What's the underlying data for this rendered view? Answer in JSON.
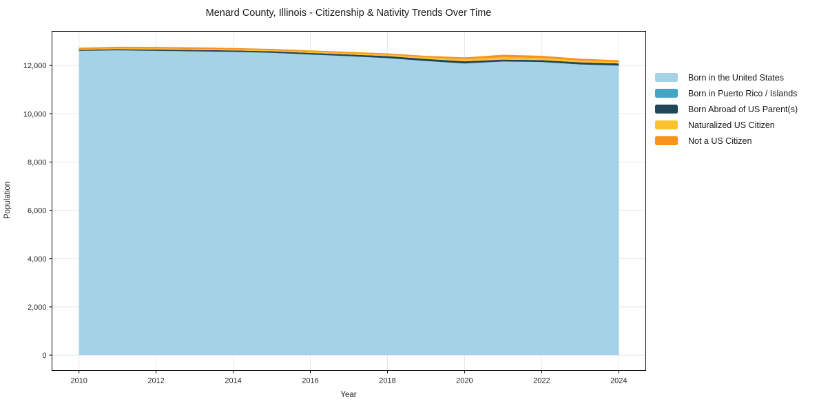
{
  "figure": {
    "title": "Menard County, Illinois - Citizenship & Nativity Trends Over Time",
    "xlabel": "Year",
    "ylabel": "Population"
  },
  "colors": {
    "background": "#ffffff",
    "grid": "#e7e7e7",
    "spine": "#000000",
    "tick_text": "#262626"
  },
  "chart_data": {
    "type": "area",
    "stacked": true,
    "title": "Menard County, Illinois - Citizenship & Nativity Trends Over Time",
    "xlabel": "Year",
    "ylabel": "Population",
    "x": [
      2010,
      2011,
      2012,
      2013,
      2014,
      2015,
      2016,
      2017,
      2018,
      2019,
      2020,
      2021,
      2022,
      2023,
      2024
    ],
    "series": [
      {
        "name": "Born in the United States",
        "color": "#a6d2e7",
        "values": [
          12600,
          12620,
          12600,
          12580,
          12560,
          12520,
          12450,
          12380,
          12300,
          12180,
          12080,
          12160,
          12140,
          12040,
          11990
        ]
      },
      {
        "name": "Born in Puerto Rico / Islands",
        "color": "#41a6c4",
        "values": [
          6,
          6,
          5,
          5,
          5,
          5,
          4,
          4,
          4,
          4,
          4,
          4,
          4,
          4,
          4
        ]
      },
      {
        "name": "Born Abroad of US Parent(s)",
        "color": "#21465a",
        "values": [
          40,
          48,
          55,
          58,
          60,
          62,
          66,
          72,
          84,
          88,
          86,
          80,
          78,
          85,
          90
        ]
      },
      {
        "name": "Naturalized US Citizen",
        "color": "#fcc22d",
        "values": [
          28,
          32,
          38,
          40,
          38,
          42,
          48,
          52,
          56,
          62,
          84,
          95,
          85,
          72,
          60
        ]
      },
      {
        "name": "Not a US Citizen",
        "color": "#f7941f",
        "values": [
          60,
          70,
          72,
          68,
          60,
          58,
          55,
          55,
          58,
          66,
          80,
          105,
          95,
          80,
          72
        ]
      }
    ],
    "xticks": [
      2010,
      2012,
      2014,
      2016,
      2018,
      2020,
      2022,
      2024
    ],
    "xtick_labels": [
      "2010",
      "2012",
      "2014",
      "2016",
      "2018",
      "2020",
      "2022",
      "2024"
    ],
    "yticks": [
      0,
      2000,
      4000,
      6000,
      8000,
      10000,
      12000
    ],
    "ytick_labels": [
      "0",
      "2,000",
      "4,000",
      "6,000",
      "8,000",
      "10,000",
      "12,000"
    ],
    "xlim": [
      2009.3,
      2024.7
    ],
    "ylim": [
      -639,
      13415
    ],
    "grid": true,
    "legend_position": "outside-right"
  }
}
